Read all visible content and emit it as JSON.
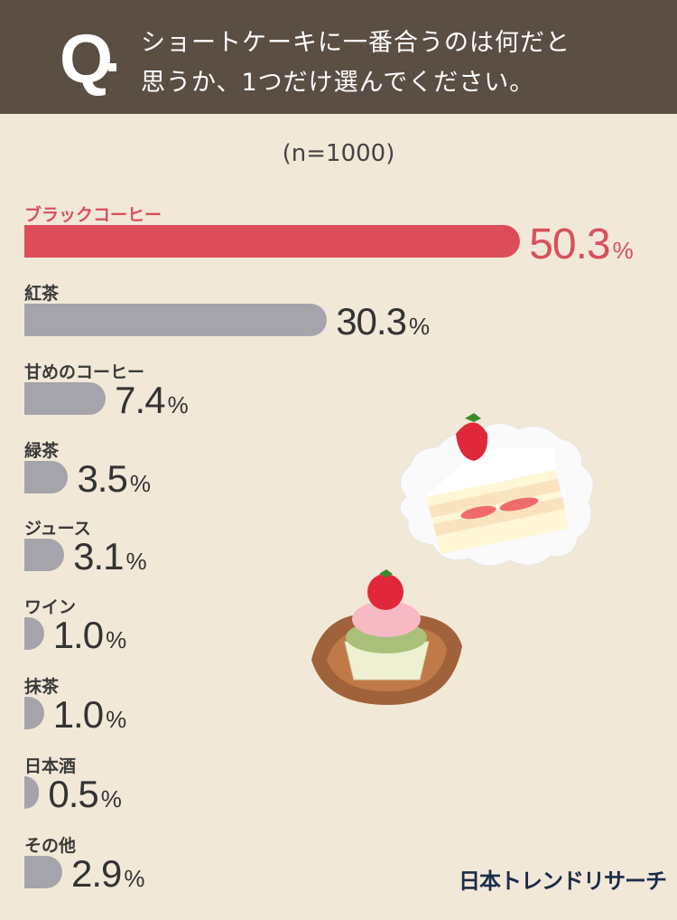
{
  "header": {
    "q_mark": "Q",
    "question_line1": "ショートケーキに一番合うのは何だと",
    "question_line2": "思うか、1つだけ選んでください。"
  },
  "sample": "(n=1000)",
  "colors": {
    "header_bg": "#5b4e43",
    "background": "#f2e8d8",
    "highlight": "#dd4d59",
    "bar": "#a4a4aa"
  },
  "chart_data": {
    "type": "bar",
    "orientation": "horizontal",
    "categories": [
      "ブラックコーヒー",
      "紅茶",
      "甘めのコーヒー",
      "緑茶",
      "ジュース",
      "ワイン",
      "抹茶",
      "日本酒",
      "その他"
    ],
    "values": [
      50.3,
      30.3,
      7.4,
      3.5,
      3.1,
      1.0,
      1.0,
      0.5,
      2.9
    ],
    "value_labels": [
      "50.3",
      "30.3",
      "7.4",
      "3.5",
      "3.1",
      "1.0",
      "1.0",
      "0.5",
      "2.9"
    ],
    "unit": "%",
    "highlight_index": 0,
    "grid": false
  },
  "logo": "日本トレンドリサーチ",
  "illustrations": [
    "strawberry-shortcake-icon",
    "strawberry-cupcake-icon"
  ]
}
